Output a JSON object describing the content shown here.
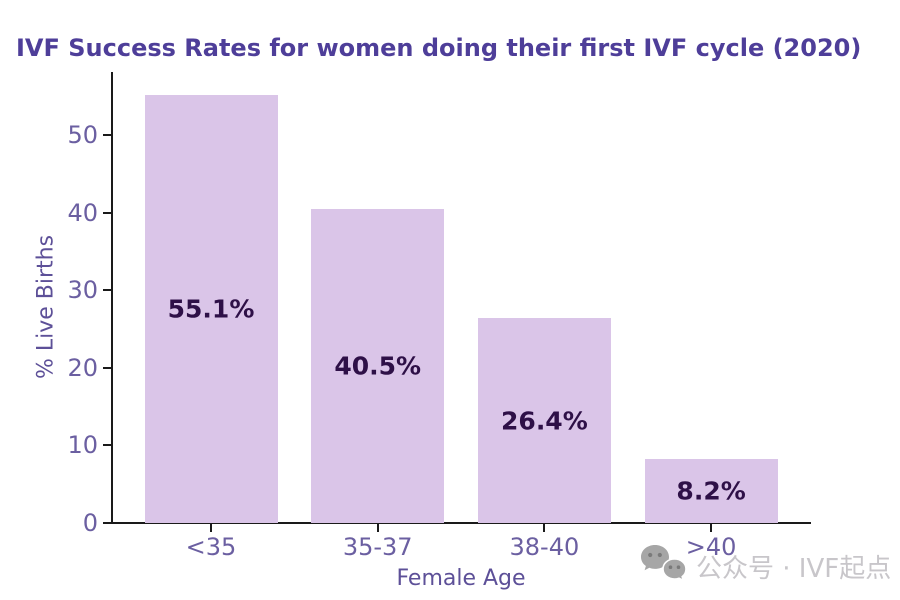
{
  "title": {
    "text": "IVF Success Rates for women doing their first IVF cycle (2020)",
    "color": "#4e3e99"
  },
  "chart_data": {
    "type": "bar",
    "categories": [
      "<35",
      "35-37",
      "38-40",
      ">40"
    ],
    "values": [
      55.1,
      40.5,
      26.4,
      8.2
    ],
    "bar_labels": [
      "55.1%",
      "40.5%",
      "26.4%",
      "8.2%"
    ],
    "title": "IVF Success Rates for women doing their first IVF cycle (2020)",
    "xlabel": "Female Age",
    "ylabel": "% Live Births",
    "yticks": [
      0,
      10,
      20,
      30,
      40,
      50
    ],
    "ylim": [
      0,
      58.1
    ],
    "grid": false,
    "legend": false,
    "colors": {
      "bar_fill": "#dac5e8",
      "bar_label": "#2e1047",
      "tick_label": "#6b5fa1",
      "axis_label": "#5d5098",
      "spine": "#1a1a1a",
      "title": "#4e3e99"
    }
  },
  "watermark": {
    "icon": "wechat-icon",
    "text": "公众号 · IVF起点",
    "text_color": "#c8c6ca",
    "icon_color": "#a6a6a6",
    "icon_eye_color": "#7a7a7a"
  }
}
